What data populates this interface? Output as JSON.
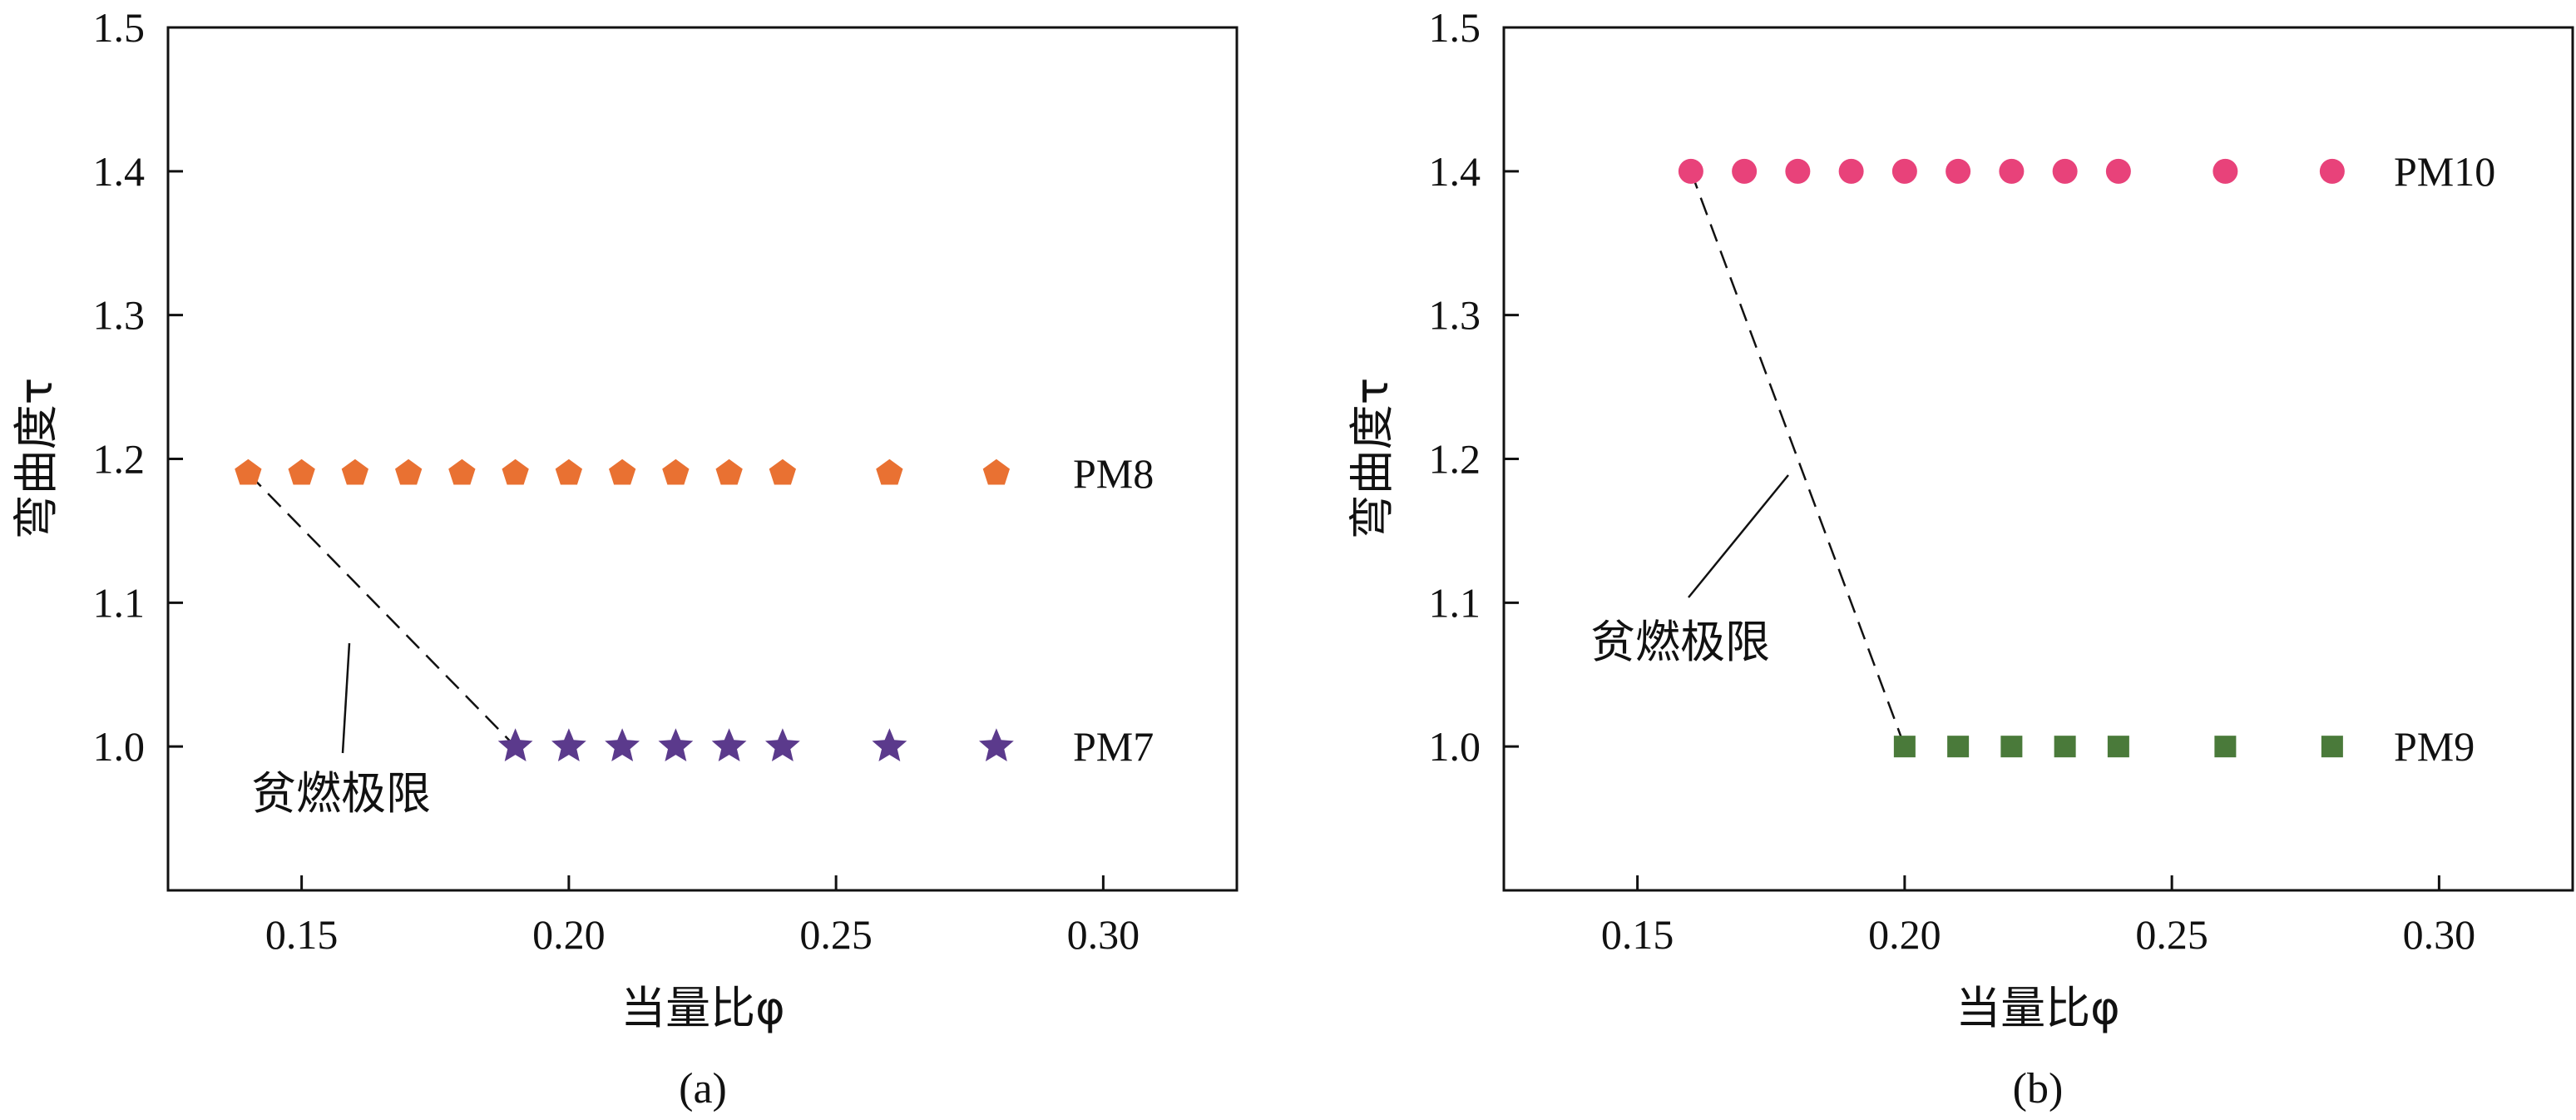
{
  "chart_data": [
    {
      "type": "scatter",
      "panel_label": "(a)",
      "xlabel": "当量比φ",
      "ylabel": "弯曲度τ",
      "xlim": [
        0.125,
        0.325
      ],
      "ylim": [
        0.9,
        1.5
      ],
      "xticks": [
        "0.15",
        "0.20",
        "0.25",
        "0.30"
      ],
      "yticks": [
        "1.0",
        "1.1",
        "1.2",
        "1.3",
        "1.4",
        "1.5"
      ],
      "grid": false,
      "annotation": "贫燃极限",
      "series": [
        {
          "name": "PM8",
          "marker": "pentagon",
          "color": "#E97132",
          "x": [
            0.14,
            0.15,
            0.16,
            0.17,
            0.18,
            0.19,
            0.2,
            0.21,
            0.22,
            0.23,
            0.24,
            0.26,
            0.28
          ],
          "y": [
            1.19,
            1.19,
            1.19,
            1.19,
            1.19,
            1.19,
            1.19,
            1.19,
            1.19,
            1.19,
            1.19,
            1.19,
            1.19
          ]
        },
        {
          "name": "PM7",
          "marker": "star",
          "color": "#5B3A8C",
          "x": [
            0.19,
            0.2,
            0.21,
            0.22,
            0.23,
            0.24,
            0.26,
            0.28
          ],
          "y": [
            1.0,
            1.0,
            1.0,
            1.0,
            1.0,
            1.0,
            1.0,
            1.0
          ]
        }
      ],
      "limit_line": {
        "from": [
          0.14,
          1.19
        ],
        "to": [
          0.19,
          1.0
        ]
      }
    },
    {
      "type": "scatter",
      "panel_label": "(b)",
      "xlabel": "当量比φ",
      "ylabel": "弯曲度τ",
      "xlim": [
        0.125,
        0.325
      ],
      "ylim": [
        0.9,
        1.5
      ],
      "xticks": [
        "0.15",
        "0.20",
        "0.25",
        "0.30"
      ],
      "yticks": [
        "1.0",
        "1.1",
        "1.2",
        "1.3",
        "1.4",
        "1.5"
      ],
      "grid": false,
      "annotation": "贫燃极限",
      "series": [
        {
          "name": "PM10",
          "marker": "circle",
          "color": "#E8427A",
          "x": [
            0.16,
            0.17,
            0.18,
            0.19,
            0.2,
            0.21,
            0.22,
            0.23,
            0.24,
            0.26,
            0.28
          ],
          "y": [
            1.4,
            1.4,
            1.4,
            1.4,
            1.4,
            1.4,
            1.4,
            1.4,
            1.4,
            1.4,
            1.4
          ]
        },
        {
          "name": "PM9",
          "marker": "square",
          "color": "#4A7A3A",
          "x": [
            0.2,
            0.21,
            0.22,
            0.23,
            0.24,
            0.26,
            0.28
          ],
          "y": [
            1.0,
            1.0,
            1.0,
            1.0,
            1.0,
            1.0,
            1.0
          ]
        }
      ],
      "limit_line": {
        "from": [
          0.16,
          1.4
        ],
        "to": [
          0.2,
          1.0
        ]
      }
    }
  ]
}
